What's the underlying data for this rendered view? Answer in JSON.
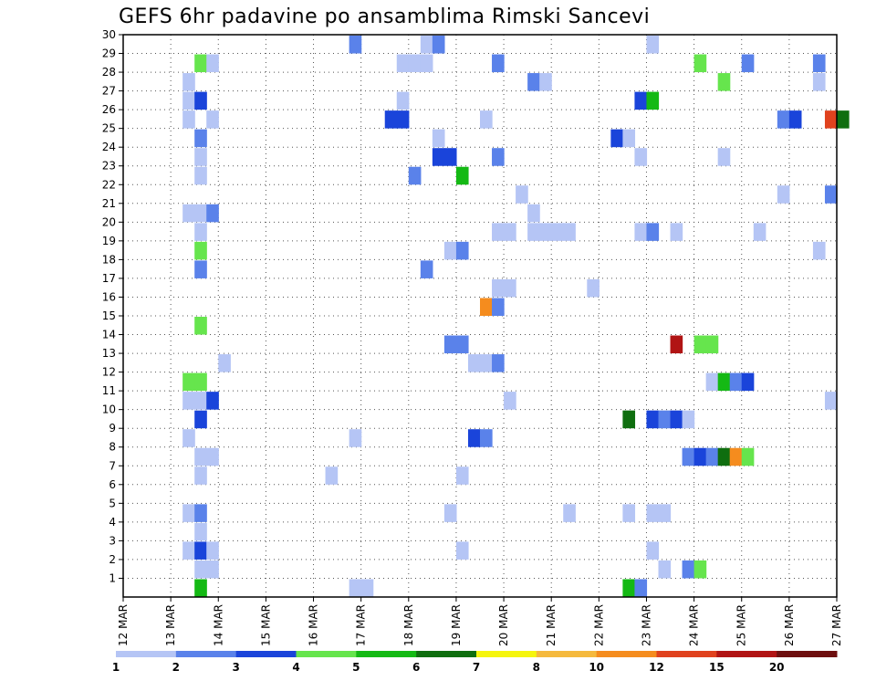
{
  "chart_data": {
    "type": "heatmap",
    "title": "GEFS 6hr padavine po ansamblima Rimski Sancevi",
    "x_ticks": [
      "12 MAR",
      "13 MAR",
      "14 MAR",
      "15 MAR",
      "16 MAR",
      "17 MAR",
      "18 MAR",
      "19 MAR",
      "20 MAR",
      "21 MAR",
      "22 MAR",
      "23 MAR",
      "24 MAR",
      "25 MAR",
      "26 MAR",
      "27 MAR"
    ],
    "x_range_days": [
      12,
      27
    ],
    "y_ticks": [
      1,
      2,
      3,
      4,
      5,
      6,
      7,
      8,
      9,
      10,
      11,
      12,
      13,
      14,
      15,
      16,
      17,
      18,
      19,
      20,
      21,
      22,
      23,
      24,
      25,
      26,
      27,
      28,
      29,
      30
    ],
    "y_range": [
      0,
      30
    ],
    "grid": true,
    "colorbar": {
      "labels": [
        "1",
        "2",
        "3",
        "4",
        "5",
        "6",
        "7",
        "8",
        "10",
        "12",
        "15",
        "20"
      ],
      "colors": [
        "#b5c5f5",
        "#5a82ea",
        "#1a44da",
        "#66e54d",
        "#14b914",
        "#0f6e0f",
        "#f5f50d",
        "#f5b93d",
        "#f58c1e",
        "#e0421e",
        "#b11414",
        "#6e0f0f"
      ]
    },
    "cells": [
      {
        "t": 13.5,
        "m": 0,
        "c": 5
      },
      {
        "t": 16.75,
        "m": 0,
        "c": 1
      },
      {
        "t": 17,
        "m": 0,
        "c": 1
      },
      {
        "t": 22.5,
        "m": 0,
        "c": 5
      },
      {
        "t": 22.75,
        "m": 0,
        "c": 2
      },
      {
        "t": 13.5,
        "m": 1,
        "c": 1
      },
      {
        "t": 13.75,
        "m": 1,
        "c": 1
      },
      {
        "t": 23.25,
        "m": 1,
        "c": 1
      },
      {
        "t": 23.75,
        "m": 1,
        "c": 2
      },
      {
        "t": 24,
        "m": 1,
        "c": 4
      },
      {
        "t": 13.25,
        "m": 2,
        "c": 1
      },
      {
        "t": 13.5,
        "m": 2,
        "c": 3
      },
      {
        "t": 13.75,
        "m": 2,
        "c": 1
      },
      {
        "t": 19,
        "m": 2,
        "c": 1
      },
      {
        "t": 23,
        "m": 2,
        "c": 1
      },
      {
        "t": 13.5,
        "m": 3,
        "c": 1
      },
      {
        "t": 13.25,
        "m": 4,
        "c": 1
      },
      {
        "t": 13.5,
        "m": 4,
        "c": 2
      },
      {
        "t": 18.75,
        "m": 4,
        "c": 1
      },
      {
        "t": 21.25,
        "m": 4,
        "c": 1
      },
      {
        "t": 22.5,
        "m": 4,
        "c": 1
      },
      {
        "t": 23,
        "m": 4,
        "c": 1
      },
      {
        "t": 23.25,
        "m": 4,
        "c": 1
      },
      {
        "t": 13.5,
        "m": 6,
        "c": 1
      },
      {
        "t": 16.25,
        "m": 6,
        "c": 1
      },
      {
        "t": 19,
        "m": 6,
        "c": 1
      },
      {
        "t": 13.5,
        "m": 7,
        "c": 1
      },
      {
        "t": 13.75,
        "m": 7,
        "c": 1
      },
      {
        "t": 23.75,
        "m": 7,
        "c": 2
      },
      {
        "t": 24,
        "m": 7,
        "c": 3
      },
      {
        "t": 24.25,
        "m": 7,
        "c": 2
      },
      {
        "t": 24.5,
        "m": 7,
        "c": 6
      },
      {
        "t": 24.75,
        "m": 7,
        "c": 9
      },
      {
        "t": 25,
        "m": 7,
        "c": 4
      },
      {
        "t": 13.25,
        "m": 8,
        "c": 1
      },
      {
        "t": 16.75,
        "m": 8,
        "c": 1
      },
      {
        "t": 19.25,
        "m": 8,
        "c": 3
      },
      {
        "t": 19.5,
        "m": 8,
        "c": 2
      },
      {
        "t": 13.5,
        "m": 9,
        "c": 3
      },
      {
        "t": 22.5,
        "m": 9,
        "c": 6
      },
      {
        "t": 23,
        "m": 9,
        "c": 3
      },
      {
        "t": 23.25,
        "m": 9,
        "c": 2
      },
      {
        "t": 23.5,
        "m": 9,
        "c": 3
      },
      {
        "t": 23.75,
        "m": 9,
        "c": 1
      },
      {
        "t": 13.25,
        "m": 10,
        "c": 1
      },
      {
        "t": 13.5,
        "m": 10,
        "c": 1
      },
      {
        "t": 13.75,
        "m": 10,
        "c": 3
      },
      {
        "t": 20,
        "m": 10,
        "c": 1
      },
      {
        "t": 26.75,
        "m": 10,
        "c": 1
      },
      {
        "t": 13.25,
        "m": 11,
        "c": 4
      },
      {
        "t": 13.5,
        "m": 11,
        "c": 4
      },
      {
        "t": 24.25,
        "m": 11,
        "c": 1
      },
      {
        "t": 24.5,
        "m": 11,
        "c": 5
      },
      {
        "t": 24.75,
        "m": 11,
        "c": 2
      },
      {
        "t": 25,
        "m": 11,
        "c": 3
      },
      {
        "t": 14,
        "m": 12,
        "c": 1
      },
      {
        "t": 19.25,
        "m": 12,
        "c": 1
      },
      {
        "t": 19.5,
        "m": 12,
        "c": 1
      },
      {
        "t": 19.75,
        "m": 12,
        "c": 2
      },
      {
        "t": 18.75,
        "m": 13,
        "c": 2
      },
      {
        "t": 19,
        "m": 13,
        "c": 2
      },
      {
        "t": 23.5,
        "m": 13,
        "c": 11
      },
      {
        "t": 24,
        "m": 13,
        "c": 4
      },
      {
        "t": 24.25,
        "m": 13,
        "c": 4
      },
      {
        "t": 13.5,
        "m": 14,
        "c": 4
      },
      {
        "t": 19.5,
        "m": 15,
        "c": 9
      },
      {
        "t": 19.75,
        "m": 15,
        "c": 2
      },
      {
        "t": 19.75,
        "m": 16,
        "c": 1
      },
      {
        "t": 20,
        "m": 16,
        "c": 1
      },
      {
        "t": 21.75,
        "m": 16,
        "c": 1
      },
      {
        "t": 18.25,
        "m": 17,
        "c": 2
      },
      {
        "t": 13.5,
        "m": 17,
        "c": 2
      },
      {
        "t": 13.5,
        "m": 18,
        "c": 4
      },
      {
        "t": 18.75,
        "m": 18,
        "c": 1
      },
      {
        "t": 19,
        "m": 18,
        "c": 2
      },
      {
        "t": 26.5,
        "m": 18,
        "c": 1
      },
      {
        "t": 13.5,
        "m": 19,
        "c": 1
      },
      {
        "t": 19.75,
        "m": 19,
        "c": 1
      },
      {
        "t": 20,
        "m": 19,
        "c": 1
      },
      {
        "t": 20.5,
        "m": 19,
        "c": 1
      },
      {
        "t": 20.75,
        "m": 19,
        "c": 1
      },
      {
        "t": 21,
        "m": 19,
        "c": 1
      },
      {
        "t": 21.25,
        "m": 19,
        "c": 1
      },
      {
        "t": 22.75,
        "m": 19,
        "c": 1
      },
      {
        "t": 23,
        "m": 19,
        "c": 2
      },
      {
        "t": 23.5,
        "m": 19,
        "c": 1
      },
      {
        "t": 25.25,
        "m": 19,
        "c": 1
      },
      {
        "t": 13.25,
        "m": 20,
        "c": 1
      },
      {
        "t": 13.5,
        "m": 20,
        "c": 1
      },
      {
        "t": 13.75,
        "m": 20,
        "c": 2
      },
      {
        "t": 20.5,
        "m": 20,
        "c": 1
      },
      {
        "t": 20.25,
        "m": 21,
        "c": 1
      },
      {
        "t": 25.75,
        "m": 21,
        "c": 1
      },
      {
        "t": 26.75,
        "m": 21,
        "c": 2
      },
      {
        "t": 13.5,
        "m": 22,
        "c": 1
      },
      {
        "t": 18,
        "m": 22,
        "c": 2
      },
      {
        "t": 19,
        "m": 22,
        "c": 5
      },
      {
        "t": 13.5,
        "m": 23,
        "c": 1
      },
      {
        "t": 18.5,
        "m": 23,
        "c": 3
      },
      {
        "t": 18.75,
        "m": 23,
        "c": 3
      },
      {
        "t": 19.75,
        "m": 23,
        "c": 2
      },
      {
        "t": 22.75,
        "m": 23,
        "c": 1
      },
      {
        "t": 24.5,
        "m": 23,
        "c": 1
      },
      {
        "t": 13.5,
        "m": 24,
        "c": 2
      },
      {
        "t": 18.5,
        "m": 24,
        "c": 1
      },
      {
        "t": 22.25,
        "m": 24,
        "c": 3
      },
      {
        "t": 22.5,
        "m": 24,
        "c": 1
      },
      {
        "t": 13.25,
        "m": 25,
        "c": 1
      },
      {
        "t": 13.75,
        "m": 25,
        "c": 1
      },
      {
        "t": 17.5,
        "m": 25,
        "c": 3
      },
      {
        "t": 17.75,
        "m": 25,
        "c": 3
      },
      {
        "t": 19.5,
        "m": 25,
        "c": 1
      },
      {
        "t": 25.75,
        "m": 25,
        "c": 2
      },
      {
        "t": 26,
        "m": 25,
        "c": 3
      },
      {
        "t": 26.75,
        "m": 25,
        "c": 10
      },
      {
        "t": 27,
        "m": 25,
        "c": 6
      },
      {
        "t": 13.25,
        "m": 26,
        "c": 1
      },
      {
        "t": 13.5,
        "m": 26,
        "c": 3
      },
      {
        "t": 17.75,
        "m": 26,
        "c": 1
      },
      {
        "t": 22.75,
        "m": 26,
        "c": 3
      },
      {
        "t": 23,
        "m": 26,
        "c": 5
      },
      {
        "t": 13.25,
        "m": 27,
        "c": 1
      },
      {
        "t": 20.5,
        "m": 27,
        "c": 2
      },
      {
        "t": 20.75,
        "m": 27,
        "c": 1
      },
      {
        "t": 24.5,
        "m": 27,
        "c": 4
      },
      {
        "t": 26.5,
        "m": 27,
        "c": 1
      },
      {
        "t": 13.5,
        "m": 28,
        "c": 4
      },
      {
        "t": 13.75,
        "m": 28,
        "c": 1
      },
      {
        "t": 17.75,
        "m": 28,
        "c": 1
      },
      {
        "t": 18,
        "m": 28,
        "c": 1
      },
      {
        "t": 18.25,
        "m": 28,
        "c": 1
      },
      {
        "t": 19.75,
        "m": 28,
        "c": 2
      },
      {
        "t": 24,
        "m": 28,
        "c": 4
      },
      {
        "t": 25,
        "m": 28,
        "c": 2
      },
      {
        "t": 26.5,
        "m": 28,
        "c": 2
      },
      {
        "t": 16.75,
        "m": 29,
        "c": 2
      },
      {
        "t": 18.25,
        "m": 29,
        "c": 1
      },
      {
        "t": 18.5,
        "m": 29,
        "c": 2
      },
      {
        "t": 23,
        "m": 29,
        "c": 1
      }
    ]
  }
}
